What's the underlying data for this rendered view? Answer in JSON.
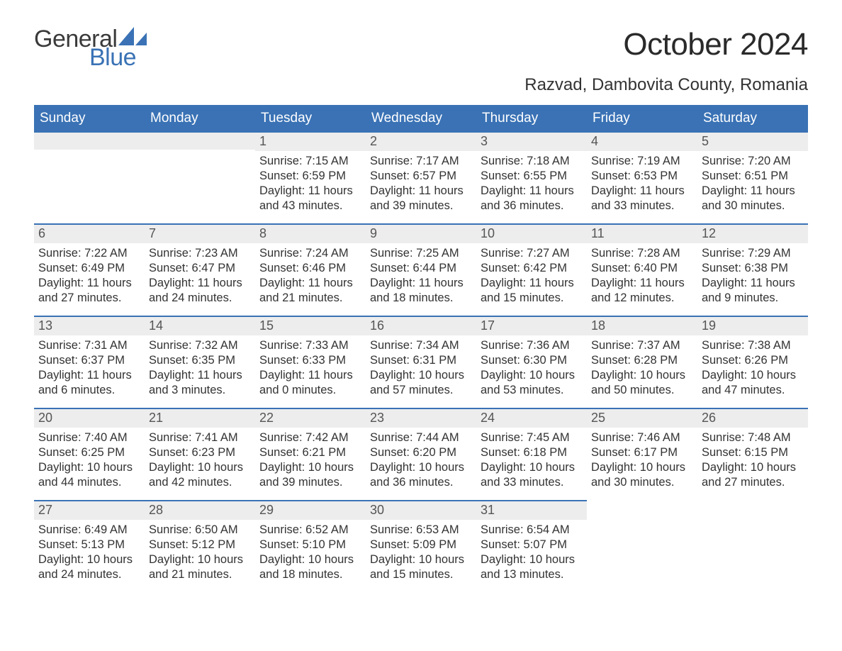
{
  "brand": {
    "word1": "General",
    "word2": "Blue",
    "text_color": "#3a3a3a",
    "accent_color": "#3a72b5"
  },
  "title": "October 2024",
  "location": "Razvad, Dambovita County, Romania",
  "colors": {
    "header_bg": "#3a72b5",
    "header_text": "#ffffff",
    "daynum_bg": "#ededed",
    "row_rule": "#3a72b5",
    "body_text": "#333333",
    "page_bg": "#ffffff"
  },
  "weekdays": [
    "Sunday",
    "Monday",
    "Tuesday",
    "Wednesday",
    "Thursday",
    "Friday",
    "Saturday"
  ],
  "weeks": [
    [
      {
        "blank": true
      },
      {
        "blank": true
      },
      {
        "day": "1",
        "sunrise": "Sunrise: 7:15 AM",
        "sunset": "Sunset: 6:59 PM",
        "dl1": "Daylight: 11 hours",
        "dl2": "and 43 minutes."
      },
      {
        "day": "2",
        "sunrise": "Sunrise: 7:17 AM",
        "sunset": "Sunset: 6:57 PM",
        "dl1": "Daylight: 11 hours",
        "dl2": "and 39 minutes."
      },
      {
        "day": "3",
        "sunrise": "Sunrise: 7:18 AM",
        "sunset": "Sunset: 6:55 PM",
        "dl1": "Daylight: 11 hours",
        "dl2": "and 36 minutes."
      },
      {
        "day": "4",
        "sunrise": "Sunrise: 7:19 AM",
        "sunset": "Sunset: 6:53 PM",
        "dl1": "Daylight: 11 hours",
        "dl2": "and 33 minutes."
      },
      {
        "day": "5",
        "sunrise": "Sunrise: 7:20 AM",
        "sunset": "Sunset: 6:51 PM",
        "dl1": "Daylight: 11 hours",
        "dl2": "and 30 minutes."
      }
    ],
    [
      {
        "day": "6",
        "sunrise": "Sunrise: 7:22 AM",
        "sunset": "Sunset: 6:49 PM",
        "dl1": "Daylight: 11 hours",
        "dl2": "and 27 minutes."
      },
      {
        "day": "7",
        "sunrise": "Sunrise: 7:23 AM",
        "sunset": "Sunset: 6:47 PM",
        "dl1": "Daylight: 11 hours",
        "dl2": "and 24 minutes."
      },
      {
        "day": "8",
        "sunrise": "Sunrise: 7:24 AM",
        "sunset": "Sunset: 6:46 PM",
        "dl1": "Daylight: 11 hours",
        "dl2": "and 21 minutes."
      },
      {
        "day": "9",
        "sunrise": "Sunrise: 7:25 AM",
        "sunset": "Sunset: 6:44 PM",
        "dl1": "Daylight: 11 hours",
        "dl2": "and 18 minutes."
      },
      {
        "day": "10",
        "sunrise": "Sunrise: 7:27 AM",
        "sunset": "Sunset: 6:42 PM",
        "dl1": "Daylight: 11 hours",
        "dl2": "and 15 minutes."
      },
      {
        "day": "11",
        "sunrise": "Sunrise: 7:28 AM",
        "sunset": "Sunset: 6:40 PM",
        "dl1": "Daylight: 11 hours",
        "dl2": "and 12 minutes."
      },
      {
        "day": "12",
        "sunrise": "Sunrise: 7:29 AM",
        "sunset": "Sunset: 6:38 PM",
        "dl1": "Daylight: 11 hours",
        "dl2": "and 9 minutes."
      }
    ],
    [
      {
        "day": "13",
        "sunrise": "Sunrise: 7:31 AM",
        "sunset": "Sunset: 6:37 PM",
        "dl1": "Daylight: 11 hours",
        "dl2": "and 6 minutes."
      },
      {
        "day": "14",
        "sunrise": "Sunrise: 7:32 AM",
        "sunset": "Sunset: 6:35 PM",
        "dl1": "Daylight: 11 hours",
        "dl2": "and 3 minutes."
      },
      {
        "day": "15",
        "sunrise": "Sunrise: 7:33 AM",
        "sunset": "Sunset: 6:33 PM",
        "dl1": "Daylight: 11 hours",
        "dl2": "and 0 minutes."
      },
      {
        "day": "16",
        "sunrise": "Sunrise: 7:34 AM",
        "sunset": "Sunset: 6:31 PM",
        "dl1": "Daylight: 10 hours",
        "dl2": "and 57 minutes."
      },
      {
        "day": "17",
        "sunrise": "Sunrise: 7:36 AM",
        "sunset": "Sunset: 6:30 PM",
        "dl1": "Daylight: 10 hours",
        "dl2": "and 53 minutes."
      },
      {
        "day": "18",
        "sunrise": "Sunrise: 7:37 AM",
        "sunset": "Sunset: 6:28 PM",
        "dl1": "Daylight: 10 hours",
        "dl2": "and 50 minutes."
      },
      {
        "day": "19",
        "sunrise": "Sunrise: 7:38 AM",
        "sunset": "Sunset: 6:26 PM",
        "dl1": "Daylight: 10 hours",
        "dl2": "and 47 minutes."
      }
    ],
    [
      {
        "day": "20",
        "sunrise": "Sunrise: 7:40 AM",
        "sunset": "Sunset: 6:25 PM",
        "dl1": "Daylight: 10 hours",
        "dl2": "and 44 minutes."
      },
      {
        "day": "21",
        "sunrise": "Sunrise: 7:41 AM",
        "sunset": "Sunset: 6:23 PM",
        "dl1": "Daylight: 10 hours",
        "dl2": "and 42 minutes."
      },
      {
        "day": "22",
        "sunrise": "Sunrise: 7:42 AM",
        "sunset": "Sunset: 6:21 PM",
        "dl1": "Daylight: 10 hours",
        "dl2": "and 39 minutes."
      },
      {
        "day": "23",
        "sunrise": "Sunrise: 7:44 AM",
        "sunset": "Sunset: 6:20 PM",
        "dl1": "Daylight: 10 hours",
        "dl2": "and 36 minutes."
      },
      {
        "day": "24",
        "sunrise": "Sunrise: 7:45 AM",
        "sunset": "Sunset: 6:18 PM",
        "dl1": "Daylight: 10 hours",
        "dl2": "and 33 minutes."
      },
      {
        "day": "25",
        "sunrise": "Sunrise: 7:46 AM",
        "sunset": "Sunset: 6:17 PM",
        "dl1": "Daylight: 10 hours",
        "dl2": "and 30 minutes."
      },
      {
        "day": "26",
        "sunrise": "Sunrise: 7:48 AM",
        "sunset": "Sunset: 6:15 PM",
        "dl1": "Daylight: 10 hours",
        "dl2": "and 27 minutes."
      }
    ],
    [
      {
        "day": "27",
        "sunrise": "Sunrise: 6:49 AM",
        "sunset": "Sunset: 5:13 PM",
        "dl1": "Daylight: 10 hours",
        "dl2": "and 24 minutes."
      },
      {
        "day": "28",
        "sunrise": "Sunrise: 6:50 AM",
        "sunset": "Sunset: 5:12 PM",
        "dl1": "Daylight: 10 hours",
        "dl2": "and 21 minutes."
      },
      {
        "day": "29",
        "sunrise": "Sunrise: 6:52 AM",
        "sunset": "Sunset: 5:10 PM",
        "dl1": "Daylight: 10 hours",
        "dl2": "and 18 minutes."
      },
      {
        "day": "30",
        "sunrise": "Sunrise: 6:53 AM",
        "sunset": "Sunset: 5:09 PM",
        "dl1": "Daylight: 10 hours",
        "dl2": "and 15 minutes."
      },
      {
        "day": "31",
        "sunrise": "Sunrise: 6:54 AM",
        "sunset": "Sunset: 5:07 PM",
        "dl1": "Daylight: 10 hours",
        "dl2": "and 13 minutes."
      },
      {
        "blank": true,
        "noRule": true
      },
      {
        "blank": true,
        "noRule": true
      }
    ]
  ]
}
